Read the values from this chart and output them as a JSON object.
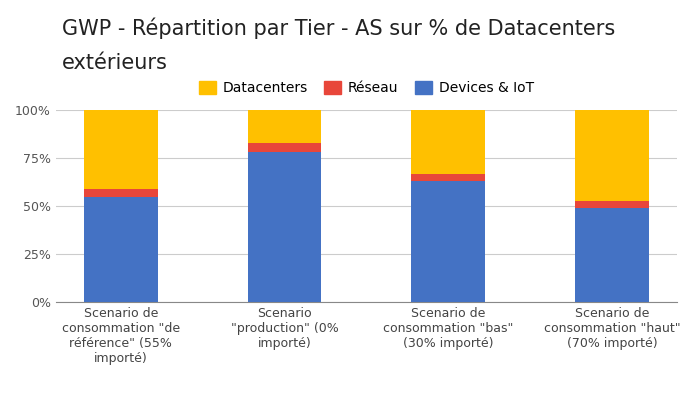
{
  "title_line1": "GWP - Répartition par Tier - AS sur % de Datacenters",
  "title_line2": "extérieurs",
  "categories": [
    "Scenario de\nconsommation \"de\nréférence\" (55%\nimporté)",
    "Scenario\n\"production\" (0%\nimporté)",
    "Scenario de\nconsommation \"bas\"\n(30% importé)",
    "Scenario de\nconsommation \"haut\"\n(70% importé)"
  ],
  "series": {
    "Devices & IoT": [
      55,
      78,
      63,
      49
    ],
    "Réseau": [
      4,
      5,
      4,
      4
    ],
    "Datacenters": [
      41,
      17,
      33,
      47
    ]
  },
  "colors": {
    "Devices & IoT": "#4472C4",
    "Réseau": "#E8463A",
    "Datacenters": "#FFC000"
  },
  "legend_order": [
    "Datacenters",
    "Réseau",
    "Devices & IoT"
  ],
  "stack_order": [
    "Devices & IoT",
    "Réseau",
    "Datacenters"
  ],
  "ylim": [
    0,
    100
  ],
  "yticks": [
    0,
    25,
    50,
    75,
    100
  ],
  "ytick_labels": [
    "0%",
    "25%",
    "50%",
    "75%",
    "100%"
  ],
  "background_color": "#FFFFFF",
  "grid_color": "#CCCCCC",
  "title_fontsize": 15,
  "tick_fontsize": 9,
  "legend_fontsize": 10,
  "bar_width": 0.45
}
